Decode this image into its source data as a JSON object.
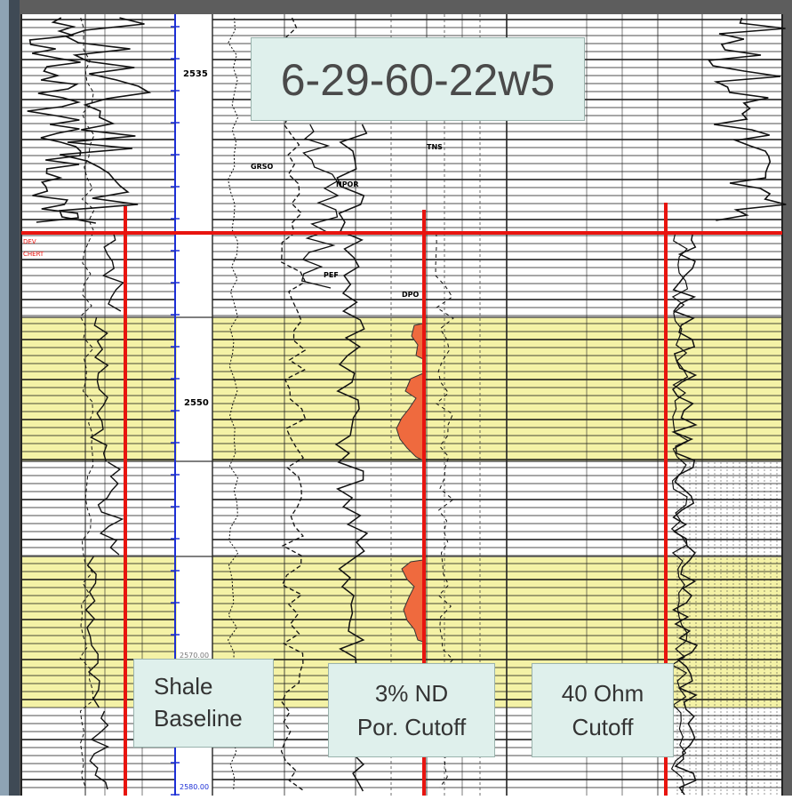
{
  "title": "6-29-60-22w5",
  "callouts": {
    "shale": [
      "Shale",
      "Baseline"
    ],
    "nd": [
      "3% ND",
      "Por. Cutoff"
    ],
    "ohm": [
      "40 Ohm",
      "Cutoff"
    ]
  },
  "depth_labels": [
    "2535",
    "2550",
    "2570.00",
    "2580.00"
  ],
  "curve_labels": [
    "GRSO",
    "NPOR",
    "PEF",
    "TNS",
    "DPO"
  ],
  "marker_text": [
    "DEV",
    "CHERT"
  ],
  "colors": {
    "frame": "#6b6b6b",
    "grid": "#111111",
    "zone": "#f4f2a6",
    "cutoff_line": "#e8140f",
    "porosity_fill": "#ef6a3e",
    "depth_track_line": "#1c2fd6",
    "callout_bg": "#dff0ec"
  }
}
